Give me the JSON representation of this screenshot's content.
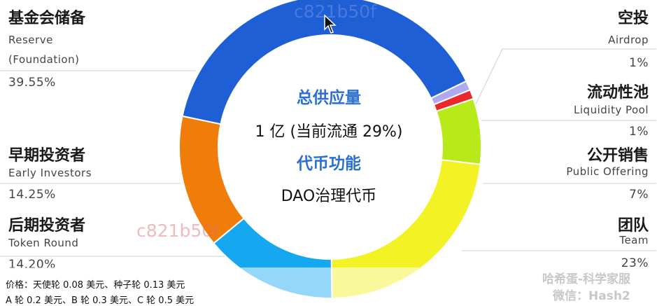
{
  "chart_data": {
    "type": "pie",
    "categories": [
      "基金会储备 Reserve (Foundation)",
      "空投 Airdrop",
      "流动性池 Liquidity Pool",
      "公开销售 Public Offering",
      "团队 Team",
      "后期投资者 Token Round",
      "早期投资者 Early Investors"
    ],
    "values": [
      39.55,
      1,
      1,
      7,
      23,
      14.2,
      14.25
    ],
    "colors": [
      "#1f5fd6",
      "#b0a8f0",
      "#e8282a",
      "#b8ea1a",
      "#f2f224",
      "#15a7ef",
      "#f07d0a"
    ]
  },
  "labels": {
    "reserve": {
      "cn": "基金会储备",
      "en1": "Reserve",
      "en2": "(Foundation)",
      "pct": "39.55%"
    },
    "early": {
      "cn": "早期投资者",
      "en": "Early Investors",
      "pct": "14.25%"
    },
    "token_round": {
      "cn": "后期投资者",
      "en": "Token Round",
      "pct": "14.20%"
    },
    "airdrop": {
      "cn": "空投",
      "en": "Airdrop",
      "pct": "1%"
    },
    "liquidity": {
      "cn": "流动性池",
      "en": "Liquidity Pool",
      "pct": "1%"
    },
    "public": {
      "cn": "公开销售",
      "en": "Public Offering",
      "pct": "7%"
    },
    "team": {
      "cn": "团队",
      "en": "Team",
      "pct": "23%"
    }
  },
  "center": {
    "title1": "总供应量",
    "supply": "1 亿 (当前流通 29%)",
    "title2": "代币功能",
    "function": "DAO治理代币"
  },
  "watermark": "c821b50f",
  "notes": {
    "line1": "价格：天使轮 0.08 美元、种子轮 0.13 美元",
    "line2": "A 轮 0.2 美元、B 轮 0.3 美元、C 轮 0.5 美元"
  },
  "ghost": {
    "line1": "哈希蛋-科学家服",
    "line2": "微信：Hash2"
  }
}
